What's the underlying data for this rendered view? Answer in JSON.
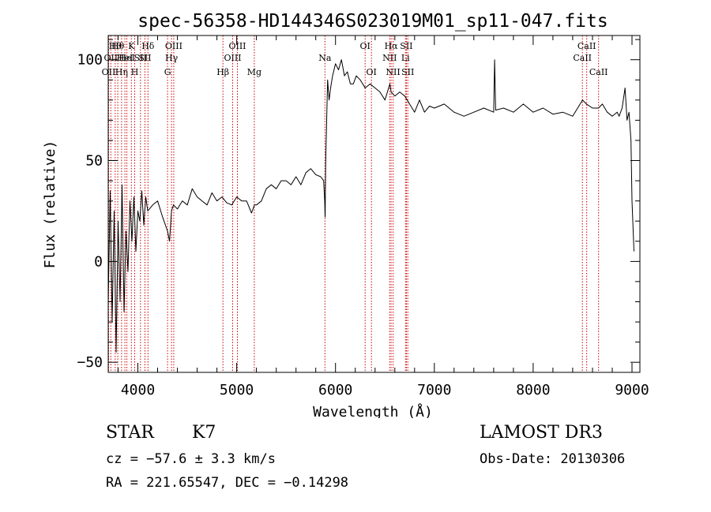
{
  "chart_data": {
    "type": "line",
    "title": "spec-56358-HD144346S023019M01_sp11-047.fits",
    "xlabel": "Wavelength (Å)",
    "ylabel": "Flux (relative)",
    "xlim": [
      3700,
      9080
    ],
    "ylim": [
      -55,
      112
    ],
    "xticks": [
      "4000",
      "5000",
      "6000",
      "7000",
      "8000",
      "9000"
    ],
    "yticks": [
      "-50",
      "0",
      "50",
      "100"
    ],
    "grid": false,
    "series": [
      {
        "color": "#000000",
        "x": [
          3700,
          3720,
          3740,
          3760,
          3780,
          3800,
          3820,
          3840,
          3860,
          3880,
          3900,
          3920,
          3940,
          3960,
          3980,
          4000,
          4020,
          4040,
          4060,
          4080,
          4100,
          4150,
          4200,
          4250,
          4300,
          4320,
          4340,
          4360,
          4400,
          4450,
          4500,
          4550,
          4600,
          4650,
          4700,
          4750,
          4800,
          4850,
          4900,
          4950,
          5000,
          5050,
          5100,
          5150,
          5180,
          5200,
          5250,
          5300,
          5350,
          5400,
          5450,
          5500,
          5550,
          5600,
          5650,
          5700,
          5750,
          5800,
          5850,
          5880,
          5890,
          5895,
          5900,
          5910,
          5920,
          5935,
          5950,
          5970,
          6000,
          6030,
          6060,
          6090,
          6120,
          6150,
          6180,
          6210,
          6250,
          6300,
          6350,
          6400,
          6450,
          6500,
          6550,
          6563,
          6600,
          6650,
          6700,
          6750,
          6800,
          6850,
          6900,
          6950,
          7000,
          7100,
          7200,
          7300,
          7400,
          7500,
          7600,
          7610,
          7620,
          7700,
          7800,
          7900,
          8000,
          8100,
          8200,
          8300,
          8400,
          8450,
          8500,
          8540,
          8600,
          8660,
          8700,
          8750,
          8800,
          8850,
          8870,
          8900,
          8930,
          8950,
          8970,
          8990,
          9000,
          9020
        ],
        "y": [
          -20,
          35,
          -30,
          25,
          -45,
          20,
          -20,
          38,
          -25,
          15,
          -5,
          30,
          10,
          32,
          5,
          25,
          20,
          35,
          18,
          32,
          25,
          28,
          30,
          22,
          15,
          10,
          25,
          28,
          26,
          30,
          28,
          36,
          32,
          30,
          28,
          34,
          30,
          32,
          29,
          28,
          32,
          30,
          30,
          24,
          28,
          28,
          30,
          36,
          38,
          36,
          40,
          40,
          38,
          42,
          38,
          44,
          46,
          43,
          42,
          40,
          30,
          22,
          48,
          70,
          90,
          80,
          86,
          92,
          98,
          95,
          100,
          92,
          94,
          88,
          88,
          92,
          90,
          86,
          88,
          86,
          84,
          80,
          88,
          84,
          82,
          84,
          82,
          78,
          74,
          80,
          74,
          77,
          76,
          78,
          74,
          72,
          74,
          76,
          74,
          100,
          75,
          76,
          74,
          78,
          74,
          76,
          73,
          74,
          72,
          76,
          80,
          78,
          76,
          76,
          78,
          74,
          72,
          74,
          72,
          76,
          86,
          70,
          74,
          60,
          30,
          5
        ]
      }
    ],
    "lines": [
      {
        "x": 3704,
        "label": "OII",
        "row": 3
      },
      {
        "x": 3726,
        "label": "OII",
        "row": 2
      },
      {
        "x": 3770,
        "label": "Hθ",
        "row": 1
      },
      {
        "x": 3797,
        "label": "Hθ",
        "row": 1
      },
      {
        "x": 3835,
        "label": "Hη",
        "row": 3
      },
      {
        "x": 3869,
        "label": "HeI",
        "row": 2
      },
      {
        "x": 3889,
        "label": "HeI",
        "row": 2
      },
      {
        "x": 3934,
        "label": "K",
        "row": 1
      },
      {
        "x": 3968,
        "label": "H",
        "row": 3
      },
      {
        "x": 4026,
        "label": "SII",
        "row": 2
      },
      {
        "x": 4072,
        "label": "SII",
        "row": 2
      },
      {
        "x": 4102,
        "label": "Hδ",
        "row": 1
      },
      {
        "x": 4300,
        "label": "G",
        "row": 3
      },
      {
        "x": 4340,
        "label": "Hγ",
        "row": 2
      },
      {
        "x": 4363,
        "label": "OIII",
        "row": 1
      },
      {
        "x": 4861,
        "label": "Hβ",
        "row": 3
      },
      {
        "x": 4959,
        "label": "OIII",
        "row": 2
      },
      {
        "x": 5007,
        "label": "OIII",
        "row": 1
      },
      {
        "x": 5178,
        "label": "Mg",
        "row": 3
      },
      {
        "x": 5893,
        "label": "Na",
        "row": 2
      },
      {
        "x": 6300,
        "label": "OI",
        "row": 1
      },
      {
        "x": 6364,
        "label": "OI",
        "row": 3
      },
      {
        "x": 6548,
        "label": "NII",
        "row": 2
      },
      {
        "x": 6563,
        "label": "Hα",
        "row": 1
      },
      {
        "x": 6583,
        "label": "NII",
        "row": 3
      },
      {
        "x": 6708,
        "label": "Li",
        "row": 2
      },
      {
        "x": 6717,
        "label": "SII",
        "row": 1
      },
      {
        "x": 6731,
        "label": "SII",
        "row": 3
      },
      {
        "x": 8498,
        "label": "CaII",
        "row": 2
      },
      {
        "x": 8542,
        "label": "CaII",
        "row": 1
      },
      {
        "x": 8662,
        "label": "CaII",
        "row": 3
      }
    ]
  },
  "footer": {
    "object_type": "STAR",
    "subclass": "K7",
    "redshift": "cz = −57.6 ± 3.3 km/s",
    "coords": "RA = 221.65547, DEC =  −0.14298",
    "survey": "LAMOST DR3",
    "obs_date": "Obs-Date: 20130306"
  }
}
